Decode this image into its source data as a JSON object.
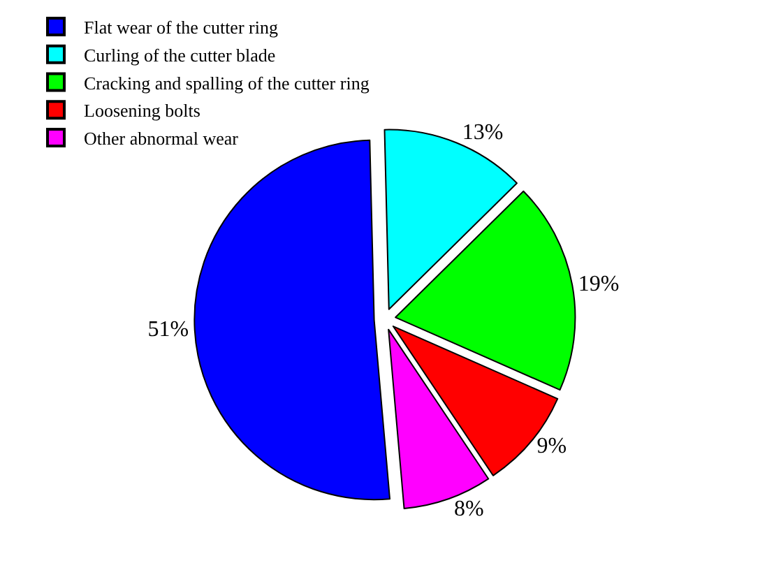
{
  "chart_data": {
    "type": "pie",
    "categories": [
      "Flat wear of the cutter ring",
      "Curling of the cutter blade",
      "Cracking and spalling of the cutter ring",
      "Loosening bolts",
      "Other abnormal wear"
    ],
    "values": [
      51,
      13,
      19,
      9,
      8
    ],
    "colors": [
      "#0000ff",
      "#00ffff",
      "#00ff00",
      "#ff0000",
      "#ff00ff"
    ],
    "value_labels": [
      "51%",
      "13%",
      "19%",
      "9%",
      "8%"
    ],
    "legend": "top left"
  }
}
